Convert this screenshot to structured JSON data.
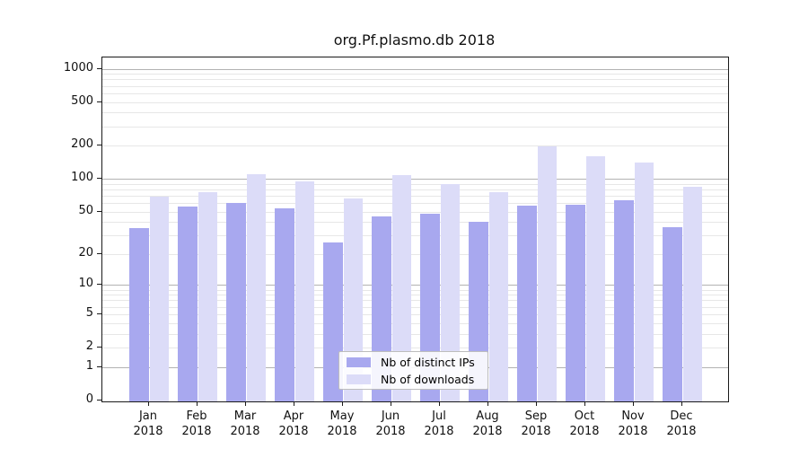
{
  "title": "org.Pf.plasmo.db 2018",
  "chart_data": {
    "type": "bar",
    "categories": [
      "Jan",
      "Feb",
      "Mar",
      "Apr",
      "May",
      "Jun",
      "Jul",
      "Aug",
      "Sep",
      "Oct",
      "Nov",
      "Dec"
    ],
    "year": "2018",
    "series": [
      {
        "name": "Nb of distinct IPs",
        "color": "#a8a8ef",
        "values": [
          35,
          56,
          60,
          54,
          26,
          45,
          48,
          40,
          57,
          58,
          64,
          36
        ]
      },
      {
        "name": "Nb of downloads",
        "color": "#dcdcf8",
        "values": [
          68,
          76,
          111,
          95,
          66,
          109,
          90,
          76,
          198,
          162,
          141,
          84
        ]
      }
    ],
    "xlabel": "",
    "ylabel": "",
    "yscale": "log2(1+value), 0 at baseline",
    "yticks": [
      0,
      1,
      2,
      5,
      10,
      20,
      50,
      100,
      200,
      500,
      1000
    ],
    "ylim": [
      0,
      1250
    ],
    "grid": "horizontal major (1,10,100,1000) darker + log minors lighter",
    "legend_position": "inside bottom-center",
    "colors": {
      "major_grid": "#b2b2b2",
      "minor_grid": "#e7e7e7",
      "axis": "#1a1a1a",
      "background": "#ffffff"
    }
  }
}
